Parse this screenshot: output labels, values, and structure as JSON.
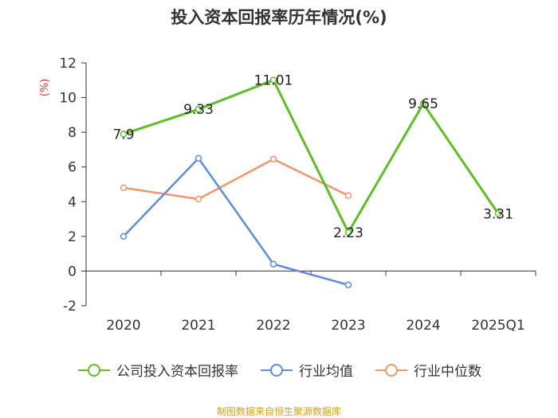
{
  "title": "投入资本回报率历年情况(%)",
  "source": "制图数据来自恒生聚源数据库",
  "colors": {
    "series": [
      "#5cc025",
      "#5b8ddb",
      "#f5956a"
    ],
    "axis": "#333333",
    "unit": "#e03030"
  },
  "chart_data": {
    "type": "line",
    "title": "投入资本回报率历年情况(%)",
    "ylabel": "(%)",
    "categories": [
      "2020",
      "2021",
      "2022",
      "2023",
      "2024",
      "2025Q1"
    ],
    "ylim": [
      -2,
      12
    ],
    "yticks": [
      -2,
      0,
      2,
      4,
      6,
      8,
      10,
      12
    ],
    "grid": false,
    "legend_position": "bottom",
    "series": [
      {
        "name": "公司投入资本回报率",
        "values": [
          7.9,
          9.33,
          11.01,
          2.23,
          9.65,
          3.31
        ],
        "labels": [
          "7.9",
          "9.33",
          "11.01",
          "2.23",
          "9.65",
          "3.31"
        ]
      },
      {
        "name": "行业均值",
        "values": [
          2.0,
          6.5,
          0.4,
          -0.8,
          null,
          null
        ]
      },
      {
        "name": "行业中位数",
        "values": [
          4.8,
          4.15,
          6.45,
          4.35,
          null,
          null
        ]
      }
    ]
  }
}
